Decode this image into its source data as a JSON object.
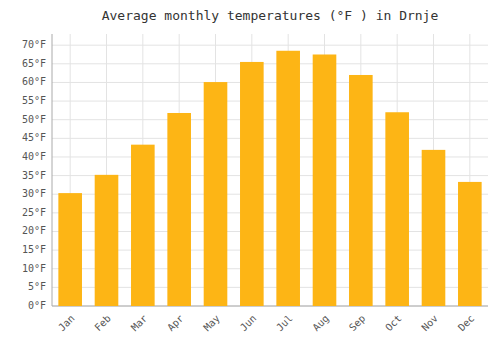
{
  "chart_data": {
    "type": "bar",
    "title": "Average monthly temperatures (°F ) in Drnje",
    "categories": [
      "Jan",
      "Feb",
      "Mar",
      "Apr",
      "May",
      "Jun",
      "Jul",
      "Aug",
      "Sep",
      "Oct",
      "Nov",
      "Dec"
    ],
    "values": [
      30.3,
      35.2,
      43.3,
      51.8,
      60.1,
      65.5,
      68.5,
      67.5,
      62.0,
      52.0,
      41.9,
      33.3
    ],
    "color": "#FDB515",
    "ylim": [
      0,
      73
    ],
    "yticks": [
      {
        "value": 0,
        "label": "0°F"
      },
      {
        "value": 5,
        "label": "5°F"
      },
      {
        "value": 10,
        "label": "10°F"
      },
      {
        "value": 15,
        "label": "15°F"
      },
      {
        "value": 20,
        "label": "20°F"
      },
      {
        "value": 25,
        "label": "25°F"
      },
      {
        "value": 30,
        "label": "30°F"
      },
      {
        "value": 35,
        "label": "35°F"
      },
      {
        "value": 40,
        "label": "40°F"
      },
      {
        "value": 45,
        "label": "45°F"
      },
      {
        "value": 50,
        "label": "50°F"
      },
      {
        "value": 55,
        "label": "55°F"
      },
      {
        "value": 60,
        "label": "60°F"
      },
      {
        "value": 65,
        "label": "65°F"
      },
      {
        "value": 70,
        "label": "70°F"
      }
    ],
    "grid": true
  }
}
